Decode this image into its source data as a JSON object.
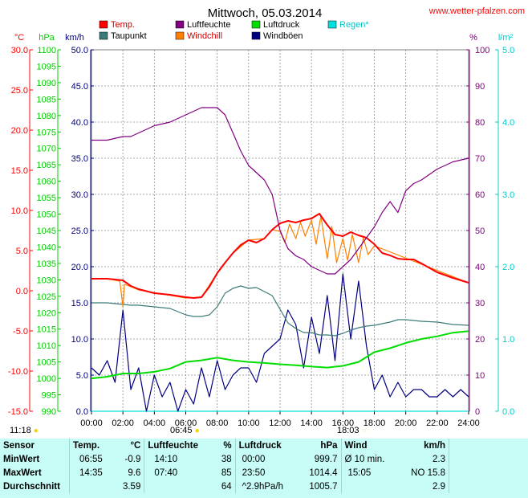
{
  "header": {
    "title": "Mittwoch, 05.03.2014",
    "site": "www.wetter-pfalzen.com"
  },
  "legend": [
    {
      "label": "Temp.",
      "color": "#ff0000"
    },
    {
      "label": "Luftfeuchte",
      "color": "#800080"
    },
    {
      "label": "Luftdruck",
      "color": "#00dd00"
    },
    {
      "label": "Regen*",
      "color": "#00e0e0"
    },
    {
      "label": "Taupunkt",
      "color": "#3a7a78"
    },
    {
      "label": "Windchill",
      "color": "#ff8000"
    },
    {
      "label": "Windböen",
      "color": "#000080"
    }
  ],
  "sun": {
    "top_left": "11:18",
    "rise": "06:45",
    "set": "18:03"
  },
  "chart_data": {
    "type": "line",
    "x_ticks": [
      "00:00",
      "02:00",
      "04:00",
      "06:00",
      "08:00",
      "10:00",
      "12:00",
      "14:00",
      "16:00",
      "18:00",
      "20:00",
      "22:00",
      "24:00"
    ],
    "xlim": [
      0,
      24
    ],
    "axes": {
      "temp": {
        "unit": "°C",
        "lim": [
          -15,
          30
        ],
        "ticks": [
          "30.0",
          "25.0",
          "20.0",
          "15.0",
          "10.0",
          "5.0",
          "0.0",
          "-5.0",
          "-10.0",
          "-15.0"
        ],
        "color": "#ff0000"
      },
      "pressure": {
        "unit": "hPa",
        "lim": [
          990,
          1100
        ],
        "ticks": [
          "1100",
          "1095",
          "1090",
          "1085",
          "1080",
          "1075",
          "1070",
          "1065",
          "1060",
          "1055",
          "1050",
          "1045",
          "1040",
          "1035",
          "1030",
          "1025",
          "1020",
          "1015",
          "1010",
          "1005",
          "1000",
          "995",
          "990"
        ],
        "color": "#00dd00"
      },
      "wind": {
        "unit": "km/h",
        "lim": [
          0,
          50
        ],
        "ticks": [
          "50.0",
          "45.0",
          "40.0",
          "35.0",
          "30.0",
          "25.0",
          "20.0",
          "15.0",
          "10.0",
          "5.0",
          "0.0"
        ],
        "color": "#000080"
      },
      "humidity": {
        "unit": "%",
        "lim": [
          0,
          100
        ],
        "ticks": [
          "100",
          "90",
          "80",
          "70",
          "60",
          "50",
          "40",
          "30",
          "20",
          "10",
          "0"
        ],
        "color": "#800080"
      },
      "rain": {
        "unit": "l/m²",
        "lim": [
          0,
          5
        ],
        "ticks": [
          "5.0",
          "4.0",
          "3.0",
          "2.0",
          "1.0",
          "0.0"
        ],
        "color": "#00cccc"
      }
    },
    "grid": true,
    "series": [
      {
        "name": "Temp.",
        "axis": "temp",
        "color": "#ff0000",
        "x": [
          0,
          1,
          2,
          2.5,
          3,
          4,
          5,
          6,
          6.5,
          7,
          7.5,
          8,
          8.5,
          9,
          9.5,
          10,
          10.5,
          11,
          11.5,
          12,
          12.5,
          13,
          13.5,
          14,
          14.5,
          15,
          15.5,
          16,
          16.5,
          17,
          17.5,
          18,
          18.5,
          19,
          19.5,
          20,
          20.5,
          21,
          22,
          23,
          24
        ],
        "y": [
          1.5,
          1.5,
          1.3,
          0.6,
          0.2,
          -0.3,
          -0.5,
          -0.8,
          -0.9,
          -0.8,
          0.5,
          2.2,
          3.5,
          4.7,
          5.7,
          6.3,
          6.0,
          6.5,
          7.6,
          8.4,
          8.7,
          8.5,
          8.8,
          9.0,
          9.6,
          8.2,
          7.0,
          6.8,
          7.3,
          6.9,
          6.6,
          5.8,
          4.7,
          4.4,
          4.0,
          3.9,
          3.9,
          3.4,
          2.3,
          1.6,
          1.0
        ]
      },
      {
        "name": "Luftfeuchte",
        "axis": "humidity",
        "color": "#800080",
        "x": [
          0,
          1,
          2,
          2.5,
          3,
          4,
          5,
          6,
          6.5,
          7,
          7.5,
          8,
          8.5,
          9,
          9.5,
          10,
          10.5,
          11,
          11.5,
          12,
          12.5,
          13,
          13.5,
          14,
          14.5,
          15,
          15.5,
          16,
          16.5,
          17,
          17.5,
          18,
          18.5,
          19,
          19.5,
          20,
          20.5,
          21,
          22,
          23,
          24
        ],
        "y": [
          75,
          75,
          76,
          76,
          77,
          79,
          80,
          82,
          83,
          84,
          84,
          84,
          82,
          77,
          72,
          68,
          66,
          64,
          60,
          50,
          45,
          43,
          42,
          40,
          39,
          38,
          38,
          40,
          42,
          45,
          48,
          51,
          55,
          58,
          55,
          61,
          63,
          64,
          67,
          69,
          70
        ]
      },
      {
        "name": "Taupunkt",
        "axis": "temp",
        "color": "#3a7a78",
        "x": [
          0,
          1,
          2,
          2.5,
          3,
          4,
          5,
          6,
          6.5,
          7,
          7.5,
          8,
          8.5,
          9,
          9.5,
          10,
          10.5,
          11,
          11.5,
          12,
          12.5,
          13,
          13.5,
          14,
          14.5,
          15,
          15.5,
          16,
          16.5,
          17,
          17.5,
          18,
          18.5,
          19,
          19.5,
          20,
          20.5,
          21,
          22,
          23,
          24
        ],
        "y": [
          -1.5,
          -1.5,
          -1.7,
          -1.8,
          -1.8,
          -2.0,
          -2.2,
          -3.0,
          -3.2,
          -3.2,
          -3.0,
          -2.0,
          -0.3,
          0.3,
          0.6,
          0.3,
          0.4,
          -0.1,
          -0.6,
          -2.3,
          -4.0,
          -4.7,
          -5.2,
          -5.2,
          -5.5,
          -5.5,
          -5.6,
          -5.3,
          -4.9,
          -4.6,
          -4.4,
          -4.3,
          -4.1,
          -3.9,
          -3.6,
          -3.6,
          -3.7,
          -3.8,
          -3.9,
          -4.2,
          -4.3
        ]
      },
      {
        "name": "Windchill",
        "axis": "temp",
        "color": "#ff8000",
        "x": [
          0,
          1,
          1.8,
          2,
          2.1,
          2.5,
          3,
          6,
          7,
          8,
          8.5,
          9,
          10,
          11,
          11.5,
          12,
          12.3,
          12.6,
          13,
          13.3,
          13.6,
          14,
          14.3,
          14.6,
          15,
          15.3,
          15.6,
          16,
          16.3,
          16.6,
          17,
          17.3,
          17.6,
          18,
          24
        ],
        "y": [
          1.5,
          1.5,
          1.2,
          -2.0,
          0.8,
          0.5,
          0.1,
          -0.9,
          -0.8,
          2.2,
          3.5,
          4.7,
          6.3,
          6.5,
          7.6,
          7.4,
          6.0,
          8.3,
          6.5,
          8.5,
          6.8,
          8.8,
          5.8,
          9.3,
          4.0,
          8.0,
          3.5,
          6.5,
          3.8,
          7.0,
          3.5,
          6.6,
          4.5,
          5.6,
          1.0
        ]
      },
      {
        "name": "Luftdruck",
        "axis": "pressure",
        "color": "#00dd00",
        "x": [
          0,
          1,
          2,
          3,
          4,
          5,
          6,
          7,
          8,
          9,
          10,
          11,
          12,
          13,
          14,
          15,
          16,
          17,
          18,
          19,
          20,
          21,
          22,
          23,
          24
        ],
        "y": [
          1000.0,
          1000.5,
          1001.5,
          1001.5,
          1002.0,
          1003.0,
          1005.0,
          1005.5,
          1006.3,
          1005.5,
          1005.0,
          1004.7,
          1004.3,
          1004.0,
          1003.6,
          1003.3,
          1003.8,
          1005.0,
          1008.0,
          1009.2,
          1010.8,
          1012.0,
          1012.8,
          1013.9,
          1014.4
        ]
      },
      {
        "name": "Windböen",
        "axis": "wind",
        "color": "#000080",
        "x": [
          0,
          0.5,
          1,
          1.5,
          2,
          2.5,
          3,
          3.5,
          4,
          4.5,
          5,
          5.5,
          6,
          6.5,
          7,
          7.5,
          8,
          8.5,
          9,
          9.5,
          10,
          10.5,
          11,
          11.5,
          12,
          12.5,
          13,
          13.5,
          14,
          14.5,
          15,
          15.5,
          16,
          16.5,
          17,
          17.5,
          18,
          18.5,
          19,
          19.5,
          20,
          20.5,
          21,
          21.5,
          22,
          22.5,
          23,
          23.5,
          24
        ],
        "y": [
          6,
          5,
          7,
          4,
          14,
          3,
          6,
          0,
          5,
          2,
          4,
          0,
          3,
          1,
          6,
          2,
          7,
          3,
          5,
          6,
          6,
          4,
          8,
          9,
          10,
          14,
          12,
          6,
          13,
          8,
          16,
          7,
          19,
          10,
          18,
          9,
          3,
          5,
          2,
          4,
          2,
          3,
          3,
          2,
          2,
          3,
          2,
          3,
          2
        ]
      },
      {
        "name": "Regen*",
        "axis": "rain",
        "color": "#00e0e0",
        "x": [
          0,
          24
        ],
        "y": [
          0,
          0
        ]
      }
    ]
  },
  "stats": {
    "header": {
      "sensor": "Sensor",
      "temp": "Temp.",
      "temp_unit": "°C",
      "hum": "Luftfeuchte",
      "hum_unit": "%",
      "press": "Luftdruck",
      "press_unit": "hPa",
      "wind": "Wind",
      "wind_unit": "km/h"
    },
    "rows": [
      {
        "label": "MinWert",
        "t_time": "06:55",
        "t_val": "-0.9",
        "h_time": "14:10",
        "h_val": "38",
        "p_time": "00:00",
        "p_val": "999.7",
        "w_time": "Ø 10 min.",
        "w_val": "2.3"
      },
      {
        "label": "MaxWert",
        "t_time": "14:35",
        "t_val": "9.6",
        "h_time": "07:40",
        "h_val": "85",
        "p_time": "23:50",
        "p_val": "1014.4",
        "w_time": "15:05",
        "w_val": "NO 15.8"
      },
      {
        "label": "Durchschnitt",
        "t_time": "",
        "t_val": "3.59",
        "h_time": "",
        "h_val": "64",
        "p_time": "^2.9hPa/h",
        "p_val": "1005.7",
        "w_time": "",
        "w_val": "2.9"
      }
    ]
  }
}
